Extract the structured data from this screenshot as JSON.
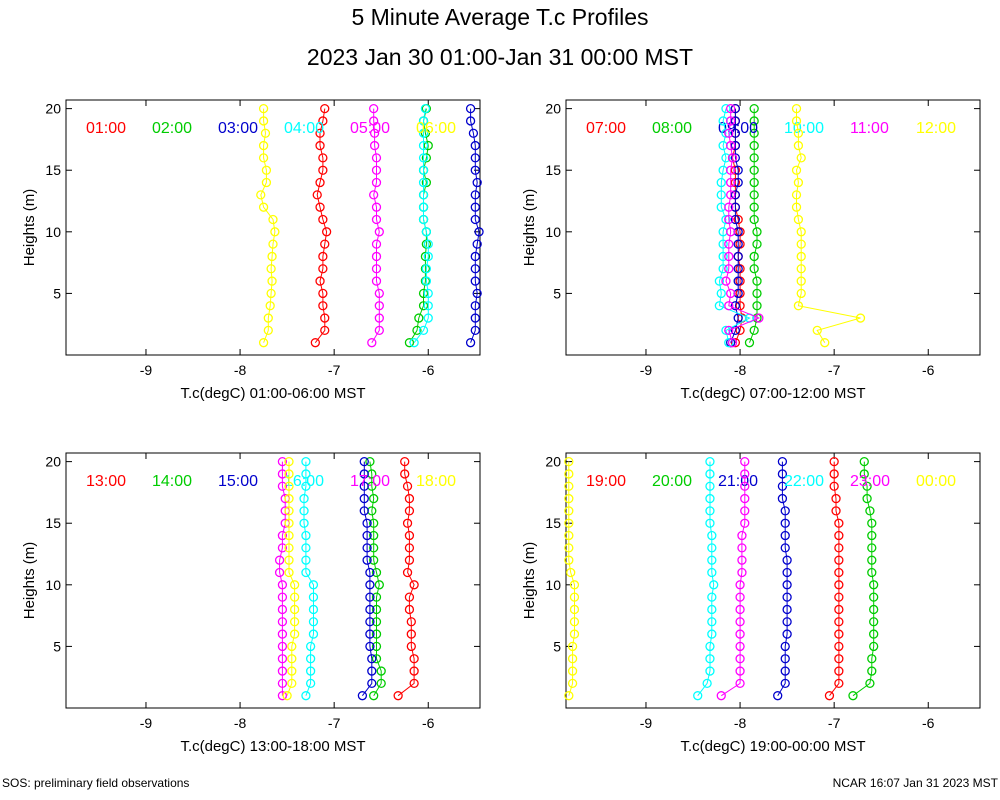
{
  "title": "5 Minute Average T.c Profiles",
  "subtitle": "2023 Jan 30 01:00-Jan 31 00:00 MST",
  "footer": {
    "left": "SOS: preliminary field observations",
    "right": "NCAR 16:07 Jan 31 2023 MST"
  },
  "colors": [
    "#ff0000",
    "#00cc00",
    "#0000cc",
    "#00ffff",
    "#ff00ff",
    "#ffff00"
  ],
  "chart_data": [
    {
      "type": "scatter",
      "xlabel": "T.c(degC) 01:00-06:00 MST",
      "ylabel": "Heights (m)",
      "xlim": [
        -9.85,
        -5.45
      ],
      "ylim": [
        0,
        20.7
      ],
      "xticks": [
        -9,
        -8,
        -7,
        -6
      ],
      "yticks": [
        5,
        10,
        15,
        20
      ],
      "heights": [
        1,
        2,
        3,
        4,
        5,
        6,
        7,
        8,
        9,
        10,
        11,
        12,
        13,
        14,
        15,
        16,
        17,
        18,
        19,
        20
      ],
      "series": [
        {
          "name": "01:00",
          "color": "#ff0000",
          "values": [
            -7.2,
            -7.1,
            -7.1,
            -7.12,
            -7.12,
            -7.15,
            -7.12,
            -7.12,
            -7.1,
            -7.08,
            -7.12,
            -7.15,
            -7.18,
            -7.15,
            -7.12,
            -7.12,
            -7.15,
            -7.15,
            -7.12,
            -7.1
          ]
        },
        {
          "name": "02:00",
          "color": "#00cc00",
          "values": [
            -6.2,
            -6.12,
            -6.1,
            -6.05,
            -6.05,
            -6.03,
            -6.03,
            -6.03,
            -6.02,
            -6.02,
            -6.05,
            -6.05,
            -6.05,
            -6.02,
            -6.05,
            -6.02,
            -6.0,
            -6.03,
            -6.05,
            -6.02
          ]
        },
        {
          "name": "03:00",
          "color": "#0000cc",
          "values": [
            -5.55,
            -5.5,
            -5.5,
            -5.5,
            -5.48,
            -5.5,
            -5.5,
            -5.5,
            -5.48,
            -5.46,
            -5.5,
            -5.5,
            -5.5,
            -5.48,
            -5.5,
            -5.5,
            -5.5,
            -5.52,
            -5.55,
            -5.55
          ]
        },
        {
          "name": "04:00",
          "color": "#00ffff",
          "values": [
            -6.15,
            -6.05,
            -6.0,
            -6.0,
            -6.0,
            -6.02,
            -6.02,
            -6.0,
            -6.0,
            -6.02,
            -6.05,
            -6.05,
            -6.05,
            -6.05,
            -6.05,
            -6.05,
            -6.05,
            -6.05,
            -6.05,
            -6.03
          ]
        },
        {
          "name": "05:00",
          "color": "#ff00ff",
          "values": [
            -6.6,
            -6.52,
            -6.52,
            -6.52,
            -6.52,
            -6.55,
            -6.55,
            -6.55,
            -6.55,
            -6.52,
            -6.55,
            -6.55,
            -6.58,
            -6.55,
            -6.55,
            -6.55,
            -6.57,
            -6.57,
            -6.58,
            -6.58
          ]
        },
        {
          "name": "06:00",
          "color": "#ffff00",
          "values": [
            -7.75,
            -7.7,
            -7.7,
            -7.68,
            -7.67,
            -7.66,
            -7.67,
            -7.66,
            -7.65,
            -7.63,
            -7.65,
            -7.75,
            -7.78,
            -7.72,
            -7.72,
            -7.75,
            -7.75,
            -7.73,
            -7.75,
            -7.75
          ]
        }
      ]
    },
    {
      "type": "scatter",
      "xlabel": "T.c(degC) 07:00-12:00 MST",
      "ylabel": "Heights (m)",
      "xlim": [
        -9.85,
        -5.45
      ],
      "ylim": [
        0,
        20.7
      ],
      "xticks": [
        -9,
        -8,
        -7,
        -6
      ],
      "yticks": [
        5,
        10,
        15,
        20
      ],
      "heights": [
        1,
        2,
        3,
        4,
        5,
        6,
        7,
        8,
        9,
        10,
        11,
        12,
        13,
        14,
        15,
        16,
        17,
        18,
        19,
        20
      ],
      "series": [
        {
          "name": "07:00",
          "color": "#ff0000",
          "values": [
            -8.05,
            -8.0,
            -7.98,
            -8.0,
            -8.0,
            -8.0,
            -8.0,
            -8.02,
            -8.0,
            -8.0,
            -8.02,
            -8.05,
            -8.05,
            -8.05,
            -8.05,
            -8.08,
            -8.05,
            -8.05,
            -8.05,
            -8.05
          ]
        },
        {
          "name": "08:00",
          "color": "#00cc00",
          "values": [
            -7.9,
            -7.85,
            -7.82,
            -7.82,
            -7.82,
            -7.82,
            -7.85,
            -7.85,
            -7.82,
            -7.82,
            -7.85,
            -7.85,
            -7.85,
            -7.85,
            -7.85,
            -7.85,
            -7.85,
            -7.85,
            -7.85,
            -7.85
          ]
        },
        {
          "name": "09:00",
          "color": "#0000cc",
          "values": [
            -8.1,
            -8.05,
            -8.02,
            -8.05,
            -8.02,
            -8.02,
            -8.02,
            -8.02,
            -8.02,
            -8.02,
            -8.05,
            -8.05,
            -8.05,
            -8.02,
            -8.02,
            -8.05,
            -8.05,
            -8.05,
            -8.05,
            -8.05
          ]
        },
        {
          "name": "10:00",
          "color": "#00ffff",
          "values": [
            -8.12,
            -8.15,
            -7.9,
            -8.22,
            -8.2,
            -8.22,
            -8.18,
            -8.18,
            -8.18,
            -8.18,
            -8.15,
            -8.2,
            -8.2,
            -8.2,
            -8.18,
            -8.15,
            -8.18,
            -8.15,
            -8.18,
            -8.15
          ]
        },
        {
          "name": "11:00",
          "color": "#ff00ff",
          "values": [
            -8.08,
            -8.12,
            -7.8,
            -8.12,
            -8.1,
            -8.15,
            -8.12,
            -8.12,
            -8.12,
            -8.1,
            -8.12,
            -8.12,
            -8.1,
            -8.1,
            -8.1,
            -8.08,
            -8.1,
            -8.12,
            -8.1,
            -8.1
          ]
        },
        {
          "name": "12:00",
          "color": "#ffff00",
          "values": [
            -7.1,
            -7.18,
            -6.72,
            -7.38,
            -7.35,
            -7.35,
            -7.35,
            -7.35,
            -7.35,
            -7.35,
            -7.38,
            -7.4,
            -7.4,
            -7.38,
            -7.4,
            -7.35,
            -7.38,
            -7.38,
            -7.4,
            -7.4
          ]
        }
      ]
    },
    {
      "type": "scatter",
      "xlabel": "T.c(degC) 13:00-18:00 MST",
      "ylabel": "Heights (m)",
      "xlim": [
        -9.85,
        -5.45
      ],
      "ylim": [
        0,
        20.7
      ],
      "xticks": [
        -9,
        -8,
        -7,
        -6
      ],
      "yticks": [
        5,
        10,
        15,
        20
      ],
      "heights": [
        1,
        2,
        3,
        4,
        5,
        6,
        7,
        8,
        9,
        10,
        11,
        12,
        13,
        14,
        15,
        16,
        17,
        18,
        19,
        20
      ],
      "series": [
        {
          "name": "13:00",
          "color": "#ff0000",
          "values": [
            -6.32,
            -6.15,
            -6.15,
            -6.15,
            -6.18,
            -6.18,
            -6.18,
            -6.2,
            -6.2,
            -6.15,
            -6.22,
            -6.2,
            -6.2,
            -6.2,
            -6.22,
            -6.2,
            -6.2,
            -6.22,
            -6.25,
            -6.25
          ]
        },
        {
          "name": "14:00",
          "color": "#00cc00",
          "values": [
            -6.58,
            -6.5,
            -6.5,
            -6.55,
            -6.55,
            -6.55,
            -6.55,
            -6.55,
            -6.55,
            -6.52,
            -6.55,
            -6.58,
            -6.58,
            -6.58,
            -6.58,
            -6.6,
            -6.58,
            -6.6,
            -6.6,
            -6.62
          ]
        },
        {
          "name": "15:00",
          "color": "#0000cc",
          "values": [
            -6.7,
            -6.6,
            -6.6,
            -6.6,
            -6.62,
            -6.62,
            -6.62,
            -6.62,
            -6.62,
            -6.62,
            -6.62,
            -6.65,
            -6.65,
            -6.65,
            -6.65,
            -6.68,
            -6.68,
            -6.68,
            -6.68,
            -6.68
          ]
        },
        {
          "name": "16:00",
          "color": "#00ffff",
          "values": [
            -7.3,
            -7.25,
            -7.25,
            -7.25,
            -7.25,
            -7.22,
            -7.22,
            -7.22,
            -7.22,
            -7.22,
            -7.3,
            -7.3,
            -7.3,
            -7.3,
            -7.32,
            -7.32,
            -7.32,
            -7.3,
            -7.3,
            -7.3
          ]
        },
        {
          "name": "17:00",
          "color": "#ff00ff",
          "values": [
            -7.55,
            -7.55,
            -7.55,
            -7.55,
            -7.55,
            -7.55,
            -7.55,
            -7.55,
            -7.55,
            -7.55,
            -7.58,
            -7.58,
            -7.55,
            -7.55,
            -7.52,
            -7.52,
            -7.52,
            -7.55,
            -7.55,
            -7.55
          ]
        },
        {
          "name": "18:00",
          "color": "#ffff00",
          "values": [
            -7.5,
            -7.45,
            -7.45,
            -7.45,
            -7.45,
            -7.42,
            -7.42,
            -7.42,
            -7.42,
            -7.42,
            -7.48,
            -7.48,
            -7.48,
            -7.48,
            -7.48,
            -7.48,
            -7.48,
            -7.48,
            -7.48,
            -7.48
          ]
        }
      ]
    },
    {
      "type": "scatter",
      "xlabel": "T.c(degC) 19:00-00:00 MST",
      "ylabel": "Heights (m)",
      "xlim": [
        -9.85,
        -5.45
      ],
      "ylim": [
        0,
        20.7
      ],
      "xticks": [
        -9,
        -8,
        -7,
        -6
      ],
      "yticks": [
        5,
        10,
        15,
        20
      ],
      "heights": [
        1,
        2,
        3,
        4,
        5,
        6,
        7,
        8,
        9,
        10,
        11,
        12,
        13,
        14,
        15,
        16,
        17,
        18,
        19,
        20
      ],
      "series": [
        {
          "name": "19:00",
          "color": "#ff0000",
          "values": [
            -7.05,
            -6.95,
            -6.95,
            -6.95,
            -6.95,
            -6.95,
            -6.95,
            -6.95,
            -6.95,
            -6.95,
            -6.95,
            -6.95,
            -6.95,
            -6.95,
            -6.95,
            -6.98,
            -6.98,
            -7.0,
            -7.0,
            -7.0
          ]
        },
        {
          "name": "20:00",
          "color": "#00cc00",
          "values": [
            -6.8,
            -6.62,
            -6.6,
            -6.6,
            -6.58,
            -6.58,
            -6.58,
            -6.58,
            -6.58,
            -6.58,
            -6.6,
            -6.6,
            -6.6,
            -6.6,
            -6.6,
            -6.62,
            -6.65,
            -6.65,
            -6.68,
            -6.68
          ]
        },
        {
          "name": "21:00",
          "color": "#0000cc",
          "values": [
            -7.6,
            -7.52,
            -7.52,
            -7.52,
            -7.52,
            -7.5,
            -7.5,
            -7.5,
            -7.5,
            -7.5,
            -7.5,
            -7.5,
            -7.52,
            -7.52,
            -7.52,
            -7.52,
            -7.55,
            -7.55,
            -7.55,
            -7.55
          ]
        },
        {
          "name": "22:00",
          "color": "#00ffff",
          "values": [
            -8.45,
            -8.35,
            -8.32,
            -8.32,
            -8.32,
            -8.3,
            -8.3,
            -8.3,
            -8.3,
            -8.28,
            -8.3,
            -8.3,
            -8.3,
            -8.3,
            -8.32,
            -8.32,
            -8.32,
            -8.32,
            -8.32,
            -8.32
          ]
        },
        {
          "name": "23:00",
          "color": "#ff00ff",
          "values": [
            -8.2,
            -8.0,
            -8.0,
            -8.0,
            -8.0,
            -8.0,
            -8.0,
            -8.0,
            -8.0,
            -8.0,
            -7.98,
            -7.98,
            -7.98,
            -7.98,
            -7.95,
            -7.95,
            -7.95,
            -7.95,
            -7.95,
            -7.95
          ]
        },
        {
          "name": "00:00",
          "color": "#ffff00",
          "values": [
            -9.82,
            -9.78,
            -9.78,
            -9.78,
            -9.78,
            -9.76,
            -9.76,
            -9.76,
            -9.76,
            -9.76,
            -9.8,
            -9.82,
            -9.82,
            -9.82,
            -9.82,
            -9.82,
            -9.82,
            -9.82,
            -9.82,
            -9.82
          ]
        }
      ]
    }
  ]
}
